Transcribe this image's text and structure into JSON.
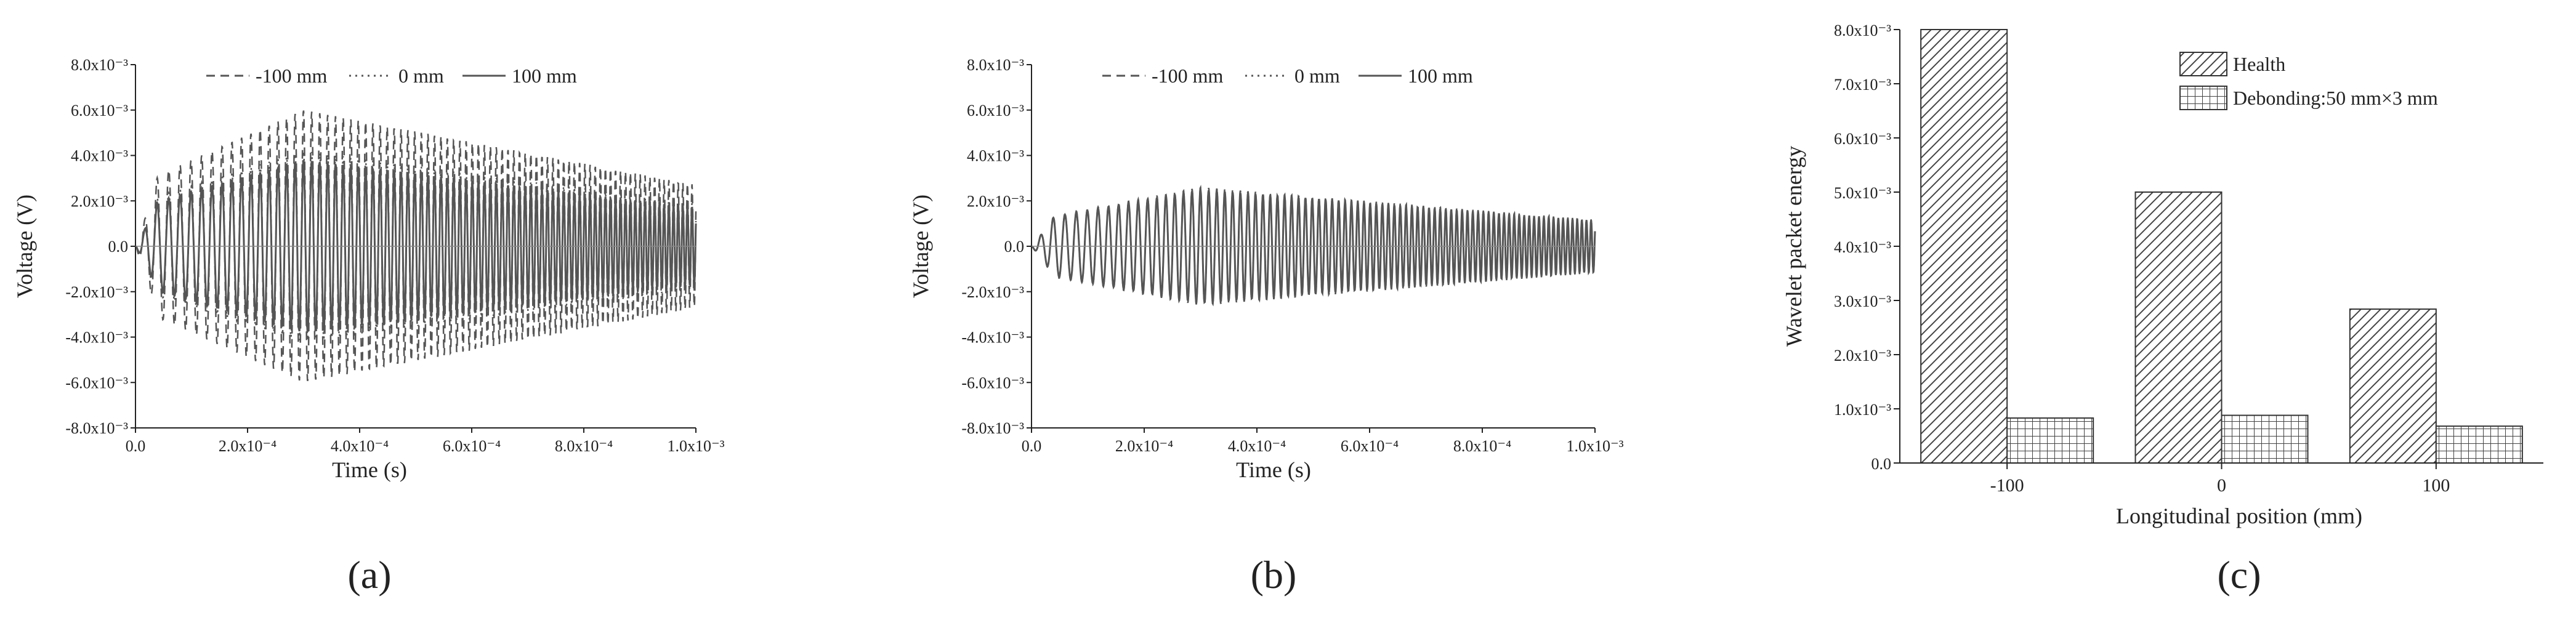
{
  "colors": {
    "curve": "#555555",
    "axis": "#222222",
    "bar_edge": "#333333",
    "hatch": "#444444"
  },
  "chart_data": [
    {
      "type": "line",
      "panel_label": "(a)",
      "xlabel": "Time (s)",
      "ylabel": "Voltage (V)",
      "xlim": [
        0,
        0.001
      ],
      "ylim": [
        -0.008,
        0.008
      ],
      "x_tick_labels": [
        "0.0",
        "2.0x10⁻⁴",
        "4.0x10⁻⁴",
        "6.0x10⁻⁴",
        "8.0x10⁻⁴",
        "1.0x10⁻³"
      ],
      "y_tick_labels": [
        "-8.0x10⁻³",
        "-6.0x10⁻³",
        "-4.0x10⁻³",
        "-2.0x10⁻³",
        "0.0",
        "2.0x10⁻³",
        "4.0x10⁻³",
        "6.0x10⁻³",
        "8.0x10⁻³"
      ],
      "legend_position": "top-center",
      "series": [
        {
          "name": "-100 mm",
          "style": "dashed",
          "peak_amplitude": 0.006,
          "frequency_hz": 44000,
          "time_of_peak": 0.0003
        },
        {
          "name": "0 mm",
          "style": "dotted",
          "peak_amplitude": 0.0042,
          "frequency_hz": 44000,
          "time_of_peak": 0.0003
        },
        {
          "name": "100 mm",
          "style": "solid",
          "peak_amplitude": 0.0038,
          "frequency_hz": 44000,
          "time_of_peak": 0.0003
        }
      ]
    },
    {
      "type": "line",
      "panel_label": "(b)",
      "xlabel": "Time (s)",
      "ylabel": "Voltage (V)",
      "xlim": [
        0,
        0.001
      ],
      "ylim": [
        -0.008,
        0.008
      ],
      "x_tick_labels": [
        "0.0",
        "2.0x10⁻⁴",
        "4.0x10⁻⁴",
        "6.0x10⁻⁴",
        "8.0x10⁻⁴",
        "1.0x10⁻³"
      ],
      "y_tick_labels": [
        "-8.0x10⁻³",
        "-6.0x10⁻³",
        "-4.0x10⁻³",
        "-2.0x10⁻³",
        "0.0",
        "2.0x10⁻³",
        "4.0x10⁻³",
        "6.0x10⁻³",
        "8.0x10⁻³"
      ],
      "legend_position": "top-center",
      "series": [
        {
          "name": "-100 mm",
          "style": "dashed",
          "peak_amplitude": 0.0026,
          "frequency_hz": 44000,
          "time_of_peak": 0.0003
        },
        {
          "name": "0 mm",
          "style": "dotted",
          "peak_amplitude": 0.0024,
          "frequency_hz": 44000,
          "time_of_peak": 0.0003
        },
        {
          "name": "100 mm",
          "style": "solid",
          "peak_amplitude": 0.0025,
          "frequency_hz": 44000,
          "time_of_peak": 0.0003
        }
      ]
    },
    {
      "type": "bar",
      "panel_label": "(c)",
      "xlabel": "Longitudinal position (mm)",
      "ylabel": "Wavelet packet energy",
      "categories": [
        "-100",
        "0",
        "100"
      ],
      "ylim": [
        0,
        0.008
      ],
      "y_tick_labels": [
        "0.0",
        "1.0x10⁻³",
        "2.0x10⁻³",
        "3.0x10⁻³",
        "4.0x10⁻³",
        "5.0x10⁻³",
        "6.0x10⁻³",
        "7.0x10⁻³",
        "8.0x10⁻³"
      ],
      "legend_position": "top-right",
      "series": [
        {
          "name": "Health",
          "pattern": "diagonal",
          "values": [
            0.008,
            0.005,
            0.00284
          ]
        },
        {
          "name": "Debonding:50 mm×3 mm",
          "pattern": "grid",
          "values": [
            0.00083,
            0.00088,
            0.00068
          ]
        }
      ]
    }
  ]
}
